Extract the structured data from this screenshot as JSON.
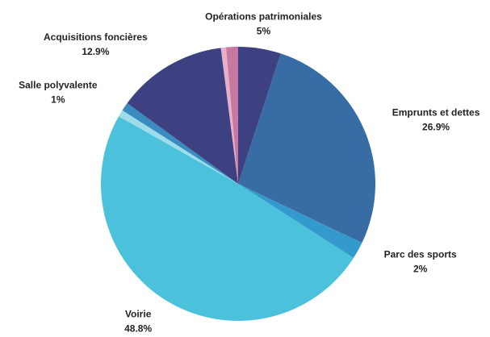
{
  "chart_data": {
    "type": "pie",
    "categories": [
      "Opérations patrimoniales",
      "Emprunts et dettes",
      "Parc des sports",
      "Voirie",
      null,
      "Salle polyvalente",
      "Acquisitions foncières",
      null,
      null
    ],
    "values": [
      5,
      26.9,
      2,
      48.8,
      0.8,
      1,
      12.9,
      0.6,
      1.4
    ],
    "value_labels": [
      "5%",
      "26.9%",
      "2%",
      "48.8%",
      null,
      "1%",
      "12.9%",
      null,
      null
    ],
    "colors": [
      "#3e4181",
      "#386ca4",
      "#3499cc",
      "#4bc1dc",
      "#9fdceb",
      "#3a8cc0",
      "#3e4181",
      "#e9aecb",
      "#c9799f"
    ]
  }
}
